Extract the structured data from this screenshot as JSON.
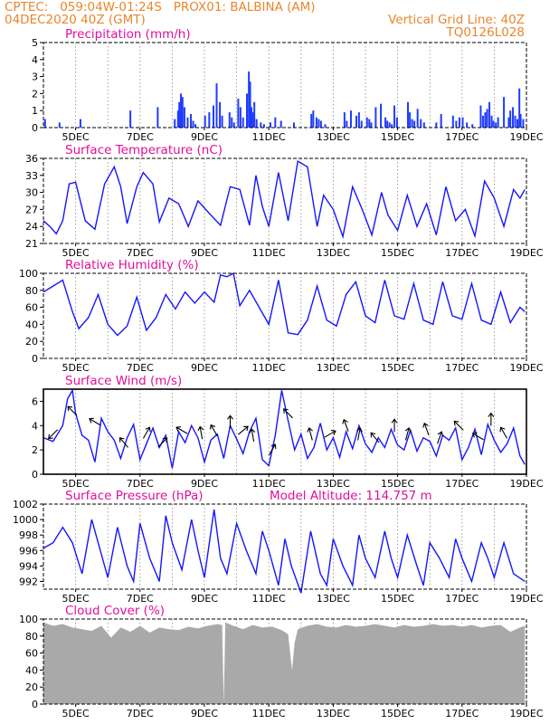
{
  "header": {
    "line1_left": "CPTEC:   059:04W-01:24S   PROX01: BALBINA (AM)",
    "line2_left": "04DEC2020 40Z (GMT)",
    "line2_right": "Vertical Grid Line: 40Z",
    "line3_right": "TQ0126L028"
  },
  "colors": {
    "header": "#e8862a",
    "title": "#e0109a",
    "series": "#1515ff",
    "bar": "#1f3cff",
    "cloud": "#a9a9a9",
    "arrow": "#000000",
    "grid": "#888888"
  },
  "x_ticks": [
    "5DEC",
    "7DEC",
    "9DEC",
    "11DEC",
    "13DEC",
    "15DEC",
    "17DEC",
    "19DEC"
  ],
  "chart_data": [
    {
      "type": "bar",
      "title": "Precipitation (mm/h)",
      "ylim": [
        0,
        5
      ],
      "yticks": [
        "0",
        "1",
        "2",
        "3",
        "4",
        "5"
      ],
      "x": [
        4.05,
        4.5,
        5.15,
        6.7,
        7.55,
        8.08,
        8.18,
        8.22,
        8.27,
        8.32,
        8.38,
        8.48,
        8.58,
        8.65,
        8.72,
        9.02,
        9.15,
        9.28,
        9.38,
        9.48,
        9.55,
        9.78,
        9.85,
        9.92,
        10.05,
        10.12,
        10.2,
        10.32,
        10.38,
        10.42,
        10.46,
        10.5,
        10.55,
        10.62,
        10.75,
        10.85,
        11.05,
        11.2,
        11.38,
        11.78,
        12.32,
        12.38,
        12.48,
        12.55,
        12.62,
        12.75,
        13.35,
        13.42,
        13.55,
        13.72,
        13.8,
        13.88,
        14.05,
        14.12,
        14.18,
        14.32,
        14.48,
        14.62,
        14.68,
        14.75,
        14.82,
        14.9,
        14.98,
        15.32,
        15.38,
        15.45,
        15.52,
        15.62,
        15.72,
        15.82,
        16.2,
        16.35,
        16.72,
        16.82,
        16.92,
        17.02,
        17.15,
        17.32,
        17.58,
        17.65,
        17.72,
        17.78,
        17.85,
        17.92,
        17.98,
        18.05,
        18.12,
        18.3,
        18.45,
        18.5,
        18.58,
        18.65,
        18.72,
        18.78,
        18.82,
        18.9
      ],
      "values": [
        0.5,
        0.3,
        0.5,
        1.0,
        1.2,
        0.5,
        1.0,
        1.5,
        2.0,
        1.8,
        1.2,
        0.6,
        0.8,
        0.4,
        0.2,
        0.7,
        0.9,
        1.3,
        2.6,
        1.5,
        0.7,
        0.9,
        0.6,
        0.3,
        1.7,
        1.2,
        0.6,
        2.0,
        3.3,
        2.7,
        1.2,
        0.9,
        1.5,
        0.5,
        0.3,
        0.2,
        0.3,
        0.6,
        0.4,
        0.3,
        0.8,
        1.0,
        0.6,
        0.5,
        0.4,
        0.2,
        0.9,
        0.4,
        1.0,
        0.7,
        0.9,
        0.4,
        0.6,
        0.5,
        0.3,
        1.2,
        1.4,
        0.6,
        0.4,
        0.3,
        0.2,
        1.3,
        0.6,
        1.5,
        0.9,
        0.5,
        0.4,
        1.1,
        0.5,
        0.3,
        0.3,
        0.8,
        0.7,
        0.4,
        0.6,
        0.6,
        0.3,
        0.2,
        1.3,
        0.7,
        0.9,
        1.1,
        1.5,
        0.7,
        0.4,
        0.3,
        0.6,
        1.8,
        0.6,
        1.0,
        1.2,
        0.7,
        0.5,
        2.3,
        0.8,
        0.5
      ]
    },
    {
      "type": "line",
      "title": "Surface Temperature (nC)",
      "ylim": [
        21,
        36
      ],
      "yticks": [
        "21",
        "24",
        "27",
        "30",
        "33",
        "36"
      ],
      "x": [
        4.0,
        4.2,
        4.4,
        4.6,
        4.8,
        5.0,
        5.3,
        5.6,
        5.9,
        6.2,
        6.4,
        6.6,
        6.9,
        7.1,
        7.4,
        7.6,
        7.9,
        8.2,
        8.5,
        8.8,
        9.2,
        9.5,
        9.8,
        10.1,
        10.4,
        10.6,
        10.8,
        11.0,
        11.3,
        11.6,
        11.9,
        12.2,
        12.5,
        12.7,
        13.0,
        13.3,
        13.6,
        13.9,
        14.2,
        14.5,
        14.7,
        15.0,
        15.3,
        15.6,
        15.9,
        16.2,
        16.5,
        16.8,
        17.1,
        17.4,
        17.7,
        18.0,
        18.3,
        18.6,
        18.8,
        18.95
      ],
      "values": [
        25,
        24,
        22.7,
        25,
        31.5,
        31.8,
        25,
        23.5,
        31.5,
        34.5,
        31,
        24.5,
        31,
        33.5,
        31.5,
        24.8,
        29,
        28,
        24,
        28.5,
        26,
        24.2,
        31,
        30.5,
        24.2,
        33,
        27.5,
        24,
        33.5,
        25,
        35.5,
        34.5,
        24,
        29.5,
        27,
        22.2,
        31,
        27,
        22.5,
        30,
        26,
        23.3,
        29.5,
        24,
        28,
        22.5,
        31,
        25,
        27,
        22.3,
        32,
        29,
        24,
        30.5,
        29,
        30.5
      ]
    },
    {
      "type": "line",
      "title": "Relative Humidity (%)",
      "ylim": [
        0,
        100
      ],
      "yticks": [
        "0",
        "20",
        "40",
        "60",
        "80",
        "100"
      ],
      "x": [
        4.0,
        4.3,
        4.6,
        4.9,
        5.1,
        5.4,
        5.7,
        6.0,
        6.3,
        6.6,
        6.9,
        7.2,
        7.5,
        7.8,
        8.1,
        8.4,
        8.7,
        9.0,
        9.3,
        9.5,
        9.7,
        9.9,
        10.1,
        10.4,
        10.7,
        11.0,
        11.3,
        11.6,
        11.9,
        12.2,
        12.5,
        12.8,
        13.1,
        13.4,
        13.7,
        14.0,
        14.3,
        14.6,
        14.9,
        15.2,
        15.5,
        15.8,
        16.1,
        16.4,
        16.7,
        17.0,
        17.3,
        17.6,
        17.9,
        18.2,
        18.5,
        18.8,
        18.95
      ],
      "values": [
        78,
        85,
        92,
        55,
        35,
        48,
        75,
        40,
        27,
        38,
        72,
        33,
        48,
        75,
        58,
        78,
        65,
        78,
        66,
        98,
        96,
        100,
        62,
        80,
        60,
        40,
        92,
        30,
        28,
        45,
        85,
        45,
        38,
        75,
        90,
        50,
        42,
        92,
        50,
        46,
        88,
        45,
        40,
        90,
        50,
        46,
        88,
        45,
        40,
        78,
        42,
        60,
        55
      ]
    },
    {
      "type": "line",
      "title": "Surface Wind (m/s)",
      "ylim": [
        0,
        7
      ],
      "yticks": [
        "0",
        "2",
        "4",
        "6"
      ],
      "x": [
        4.0,
        4.3,
        4.6,
        4.75,
        4.9,
        5.0,
        5.2,
        5.4,
        5.6,
        5.8,
        6.0,
        6.2,
        6.4,
        6.6,
        6.8,
        7.0,
        7.2,
        7.4,
        7.6,
        7.8,
        8.0,
        8.2,
        8.4,
        8.6,
        8.8,
        9.0,
        9.2,
        9.4,
        9.6,
        9.8,
        10.0,
        10.2,
        10.4,
        10.6,
        10.8,
        11.0,
        11.2,
        11.4,
        11.6,
        11.8,
        12.0,
        12.2,
        12.4,
        12.6,
        12.8,
        13.0,
        13.2,
        13.4,
        13.6,
        13.8,
        14.0,
        14.2,
        14.4,
        14.6,
        14.8,
        15.0,
        15.2,
        15.4,
        15.6,
        15.8,
        16.0,
        16.2,
        16.4,
        16.6,
        16.8,
        17.0,
        17.2,
        17.4,
        17.6,
        17.8,
        18.0,
        18.2,
        18.4,
        18.6,
        18.8,
        18.95
      ],
      "values": [
        3.0,
        2.7,
        4.0,
        6.2,
        6.9,
        5.0,
        3.2,
        2.8,
        1.0,
        4.6,
        3.5,
        2.8,
        1.3,
        3.0,
        4.1,
        1.2,
        2.5,
        3.8,
        2.2,
        3.2,
        0.5,
        3.5,
        2.6,
        4.0,
        3.0,
        1.0,
        2.8,
        3.3,
        1.3,
        4.0,
        2.9,
        1.7,
        3.5,
        4.6,
        1.2,
        0.7,
        3.2,
        6.9,
        4.4,
        2.0,
        3.3,
        1.3,
        2.2,
        4.2,
        2.0,
        3.0,
        1.4,
        3.5,
        2.1,
        4.0,
        2.5,
        1.8,
        3.0,
        2.2,
        3.7,
        2.4,
        2.0,
        3.6,
        1.9,
        3.0,
        2.7,
        1.5,
        3.2,
        2.8,
        3.8,
        1.2,
        2.2,
        3.7,
        1.6,
        4.1,
        2.8,
        1.8,
        2.5,
        3.8,
        1.5,
        0.8
      ]
    },
    {
      "type": "line",
      "title": "Surface Pressure (hPa)",
      "annotation": "Model Altitude: 114.757 m",
      "ylim": [
        991,
        1002
      ],
      "yticks": [
        "992",
        "994",
        "996",
        "998",
        "1000",
        "1002"
      ],
      "x": [
        4.0,
        4.3,
        4.6,
        4.9,
        5.2,
        5.5,
        5.7,
        6.0,
        6.3,
        6.6,
        6.8,
        7.0,
        7.3,
        7.6,
        7.8,
        8.0,
        8.3,
        8.6,
        8.8,
        9.0,
        9.3,
        9.5,
        9.7,
        10.0,
        10.3,
        10.6,
        10.8,
        11.0,
        11.3,
        11.5,
        11.7,
        12.0,
        12.3,
        12.6,
        12.8,
        13.0,
        13.3,
        13.6,
        13.8,
        14.0,
        14.3,
        14.6,
        14.8,
        15.0,
        15.3,
        15.6,
        15.8,
        16.0,
        16.3,
        16.6,
        16.8,
        17.0,
        17.3,
        17.6,
        17.8,
        18.0,
        18.3,
        18.6,
        18.95
      ],
      "values": [
        996.3,
        997,
        999,
        997,
        993,
        1000,
        997,
        992.5,
        999,
        994,
        992,
        999.5,
        995,
        992,
        1000.5,
        997,
        993.5,
        1000,
        996,
        992.5,
        1001.3,
        995,
        993,
        999.5,
        996,
        993,
        998.5,
        996,
        991.5,
        997.5,
        994,
        990.5,
        998.5,
        993,
        991.5,
        997.5,
        994,
        991.5,
        998,
        995,
        992.5,
        998.5,
        995,
        992.5,
        998,
        994,
        991.5,
        997,
        995,
        992.5,
        997.5,
        995,
        992,
        997,
        995,
        992.5,
        997,
        993,
        992
      ]
    },
    {
      "type": "area",
      "title": "Cloud Cover (%)",
      "ylim": [
        0,
        100
      ],
      "yticks": [
        "0",
        "20",
        "40",
        "60",
        "80",
        "100"
      ],
      "x": [
        4.0,
        4.3,
        4.6,
        4.9,
        5.2,
        5.5,
        5.8,
        6.1,
        6.4,
        6.7,
        7.0,
        7.3,
        7.6,
        7.9,
        8.2,
        8.5,
        8.8,
        9.1,
        9.4,
        9.55,
        9.6,
        9.65,
        9.9,
        10.2,
        10.5,
        10.8,
        11.1,
        11.4,
        11.6,
        11.72,
        11.8,
        11.9,
        12.2,
        12.5,
        12.8,
        13.1,
        13.4,
        13.7,
        14.0,
        14.3,
        14.6,
        14.9,
        15.2,
        15.5,
        15.8,
        16.1,
        16.4,
        16.7,
        17.0,
        17.3,
        17.6,
        17.9,
        18.2,
        18.5,
        18.8,
        18.95
      ],
      "values": [
        96,
        92,
        94,
        90,
        88,
        86,
        92,
        78,
        90,
        85,
        92,
        84,
        90,
        88,
        87,
        91,
        89,
        92,
        94,
        93,
        0,
        96,
        92,
        88,
        93,
        90,
        91,
        87,
        82,
        40,
        72,
        88,
        92,
        94,
        91,
        90,
        93,
        91,
        92,
        94,
        92,
        90,
        93,
        91,
        92,
        94,
        92,
        93,
        91,
        93,
        90,
        92,
        93,
        85,
        90,
        92
      ]
    }
  ]
}
